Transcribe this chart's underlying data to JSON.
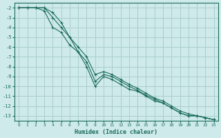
{
  "xlabel": "Humidex (Indice chaleur)",
  "ylabel": "",
  "background_color": "#ceeaea",
  "grid_color": "#aacece",
  "line_color": "#1a6b5a",
  "xlim": [
    -0.5,
    23.5
  ],
  "ylim": [
    -13.5,
    -1.5
  ],
  "yticks": [
    -2,
    -3,
    -4,
    -5,
    -6,
    -7,
    -8,
    -9,
    -10,
    -11,
    -12,
    -13
  ],
  "xticks": [
    0,
    1,
    2,
    3,
    4,
    5,
    6,
    7,
    8,
    9,
    10,
    11,
    12,
    13,
    14,
    15,
    16,
    17,
    18,
    19,
    20,
    21,
    22,
    23
  ],
  "series": [
    {
      "x": [
        0,
        1,
        2,
        3,
        4,
        5,
        6,
        7,
        8,
        9,
        10,
        11,
        12,
        13,
        14,
        15,
        16,
        17,
        18,
        19,
        20,
        21,
        22,
        23
      ],
      "y": [
        -2,
        -2,
        -2,
        -2,
        -3,
        -4,
        -5,
        -6,
        -7,
        -8.8,
        -8.5,
        -8.8,
        -9.3,
        -9.8,
        -10.2,
        -10.7,
        -11.2,
        -11.5,
        -12,
        -12.5,
        -12.8,
        -13,
        -13.2,
        -13.4
      ]
    },
    {
      "x": [
        0,
        1,
        2,
        3,
        4,
        5,
        6,
        7,
        8,
        9,
        10,
        11,
        12,
        13,
        14,
        15,
        16,
        17,
        18,
        19,
        20,
        21,
        22,
        23
      ],
      "y": [
        -2,
        -2,
        -2,
        -2.3,
        -4,
        -4.5,
        -5.8,
        -6.5,
        -7.5,
        -9.5,
        -8.8,
        -9.0,
        -9.5,
        -10,
        -10.4,
        -10.9,
        -11.3,
        -11.7,
        -12.2,
        -12.7,
        -13,
        -13,
        -13.2,
        -13.4
      ]
    },
    {
      "x": [
        0,
        1,
        2,
        3,
        4,
        5,
        6,
        7,
        8,
        9,
        10,
        11,
        12,
        13,
        14,
        15,
        16,
        17,
        18,
        19,
        20,
        21,
        22,
        23
      ],
      "y": [
        -2,
        -2,
        -2,
        -2,
        -2.5,
        -3.5,
        -5,
        -6.5,
        -8,
        -10,
        -9,
        -9.3,
        -9.8,
        -10.3,
        -10.5,
        -11,
        -11.5,
        -11.7,
        -12.2,
        -12.7,
        -13,
        -13,
        -13.2,
        -13.4
      ]
    }
  ]
}
